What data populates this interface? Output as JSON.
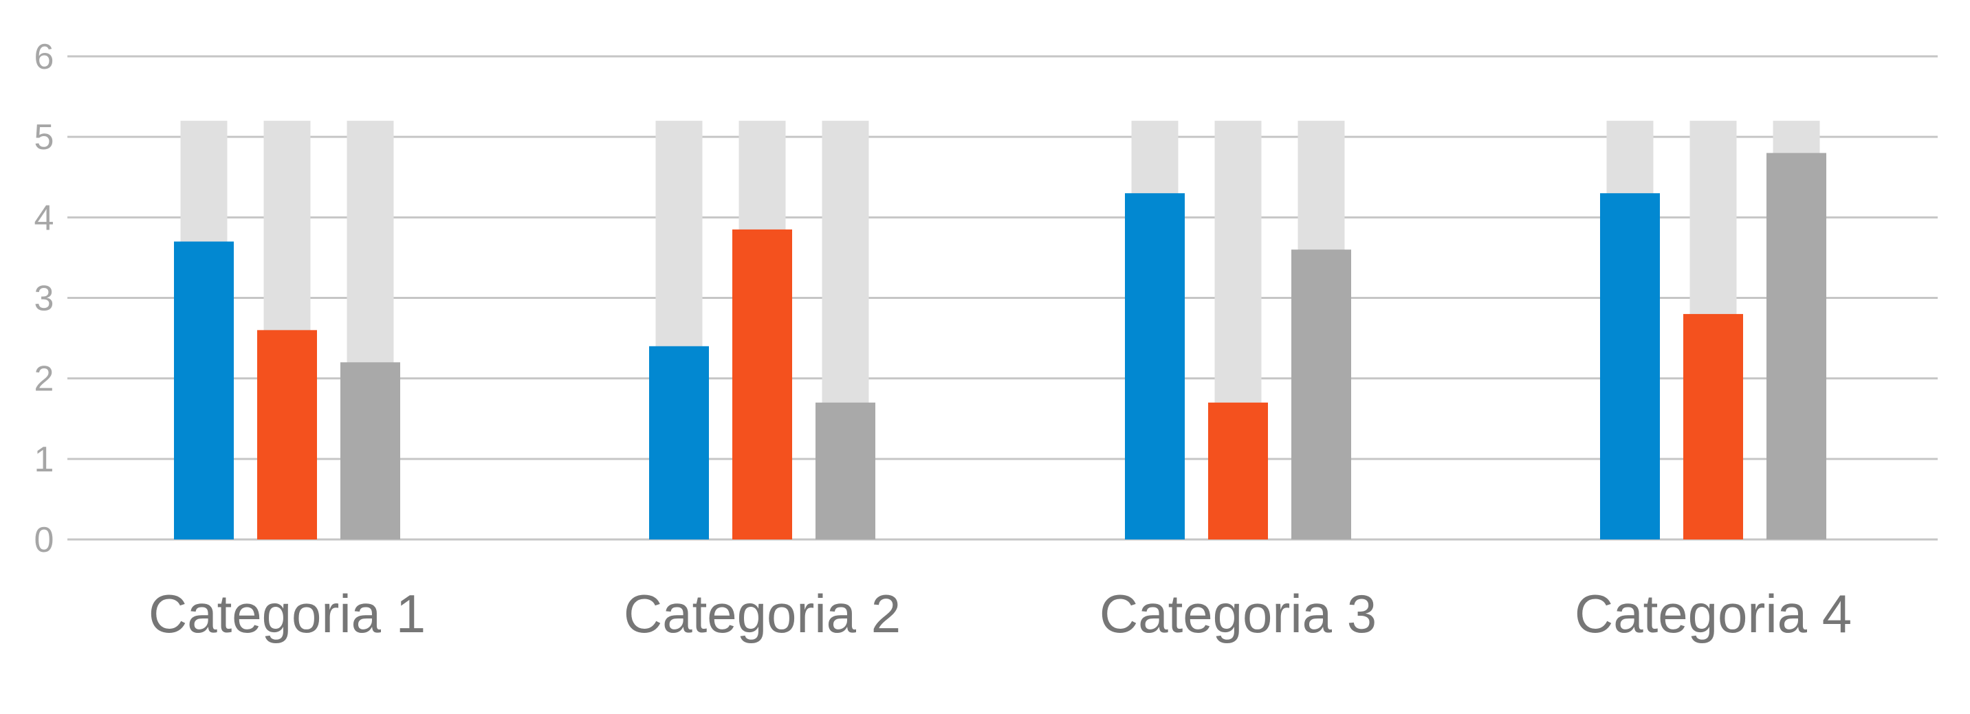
{
  "chart_data": {
    "type": "bar",
    "title": "",
    "xlabel": "",
    "ylabel": "",
    "ylim": [
      0,
      6
    ],
    "yticks": [
      0,
      1,
      2,
      3,
      4,
      5,
      6
    ],
    "grid": true,
    "legend": "none",
    "categories": [
      "Categoria 1",
      "Categoria 2",
      "Categoria 3",
      "Categoria 4"
    ],
    "background_value": 5.2,
    "series": [
      {
        "color": "#0288d1",
        "values": [
          3.7,
          2.4,
          4.3,
          4.3
        ]
      },
      {
        "color": "#f4511e",
        "values": [
          2.6,
          3.85,
          1.7,
          2.8
        ]
      },
      {
        "color": "#a9a9a9",
        "values": [
          2.2,
          1.7,
          3.6,
          4.8
        ]
      }
    ],
    "colors": {
      "background_bar": "#e0e0e0",
      "grid": "#c6c6c6",
      "tick_text": "#a6a6a6",
      "category_text": "#767676"
    }
  }
}
